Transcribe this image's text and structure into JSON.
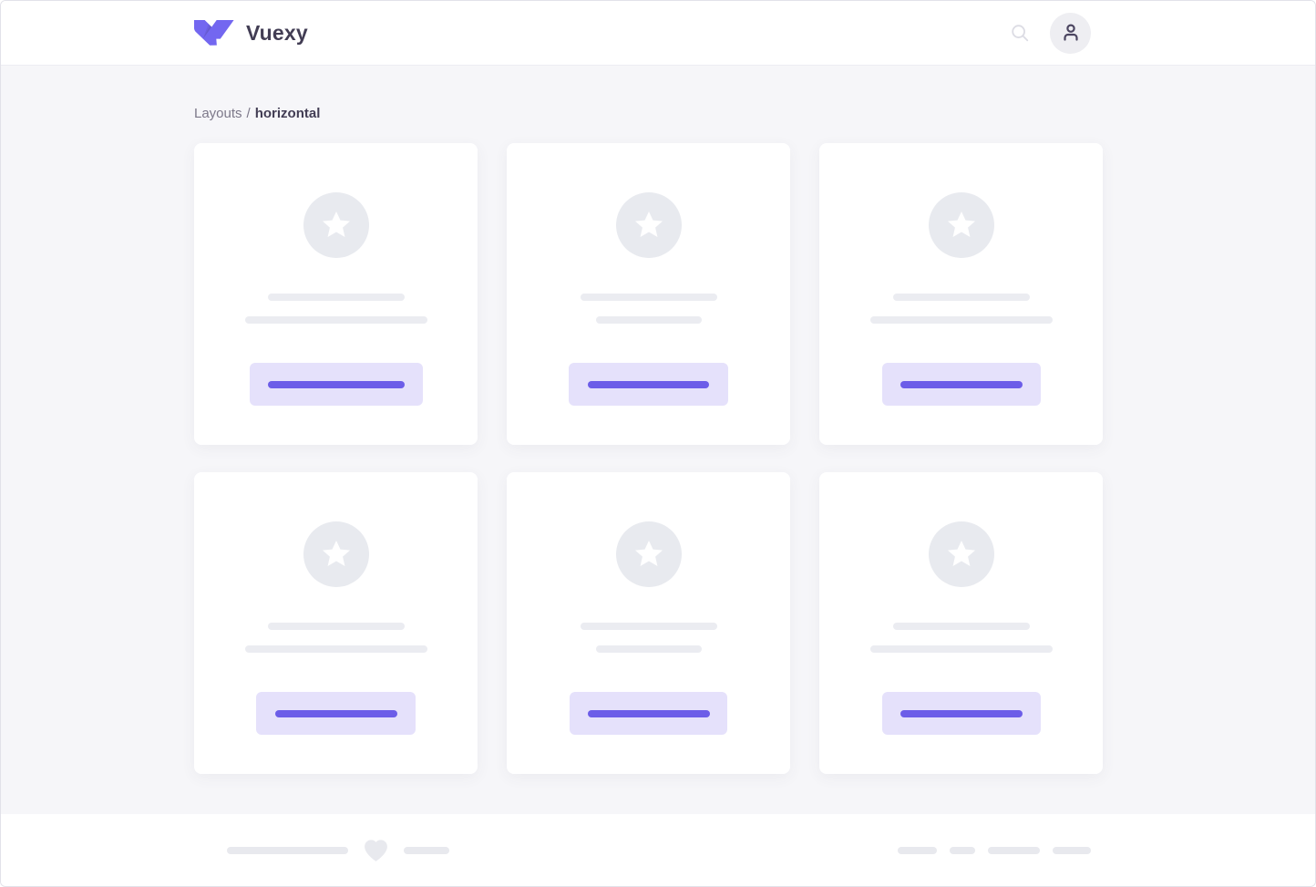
{
  "header": {
    "brand": "Vuexy",
    "icons": {
      "search": "search-icon",
      "avatar": "user-icon"
    }
  },
  "breadcrumb": {
    "parent": "Layouts",
    "separator": "/",
    "current": "horizontal"
  },
  "content": {
    "card_icon": "star-icon",
    "cards": [
      {
        "line1_w": 150,
        "line2_w": 200,
        "button_w": 190,
        "button_line_w": 150
      },
      {
        "line1_w": 150,
        "line2_w": 116,
        "button_w": 175,
        "button_line_w": 133
      },
      {
        "line1_w": 150,
        "line2_w": 200,
        "button_w": 174,
        "button_line_w": 134
      },
      {
        "line1_w": 150,
        "line2_w": 200,
        "button_w": 175,
        "button_line_w": 134
      },
      {
        "line1_w": 150,
        "line2_w": 116,
        "button_w": 173,
        "button_line_w": 134
      },
      {
        "line1_w": 150,
        "line2_w": 200,
        "button_w": 174,
        "button_line_w": 134
      }
    ]
  },
  "footer": {
    "icon": "heart-icon",
    "left_pills": [
      133,
      50
    ],
    "right_pills": [
      43,
      28,
      57,
      42
    ]
  },
  "colors": {
    "primary": "#7367F0",
    "button_bg": "#E5E1FB",
    "button_line": "#6C5DE8",
    "placeholder": "#EBECF1",
    "body_bg": "#F6F6F9",
    "text_dark": "#423D54",
    "text_muted": "#7C7889"
  }
}
